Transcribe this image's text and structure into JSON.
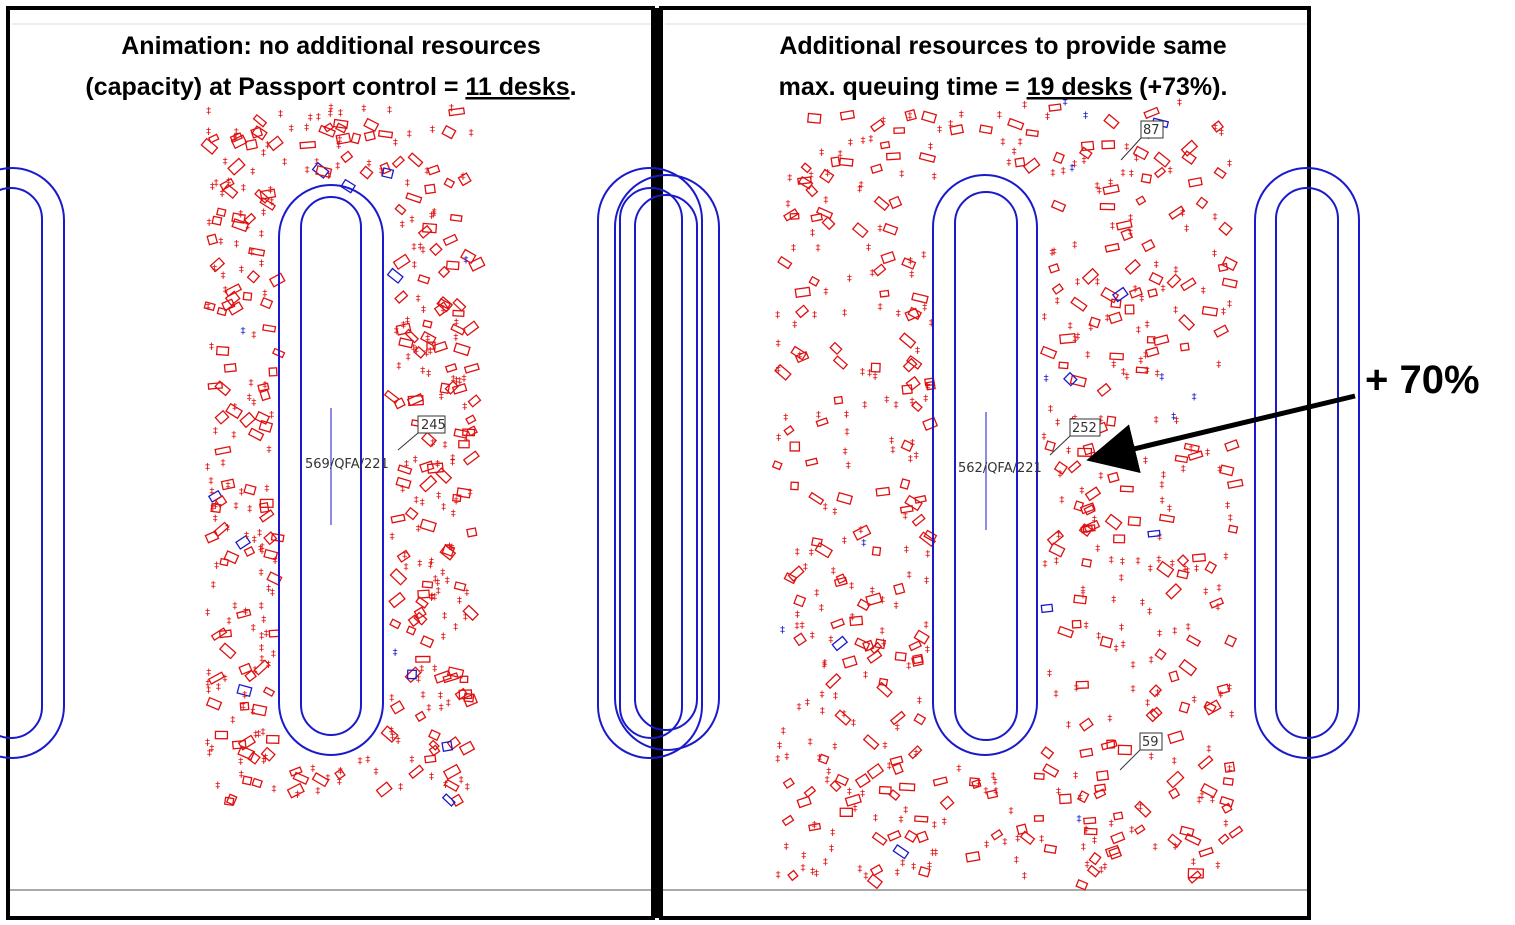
{
  "panels": [
    {
      "title": {
        "line1": "Animation: no additional resources",
        "line2": "(capacity) at Passport control = ",
        "highlight": "11 desks",
        "tail": "."
      },
      "flight_label": "569/QFA/221",
      "tags": [
        "245"
      ]
    },
    {
      "title": {
        "line1": "Additional resources to provide same",
        "line2": "max. queuing time = ",
        "highlight": "19 desks",
        "tail": " (+73%)."
      },
      "flight_label": "562/QFA/221",
      "tags": [
        "87",
        "252",
        "59"
      ]
    }
  ],
  "callout": "+ 70%"
}
